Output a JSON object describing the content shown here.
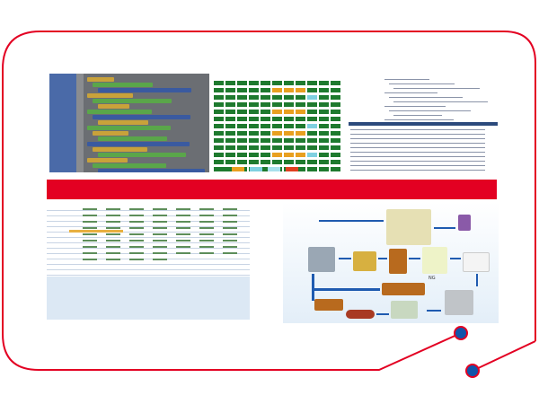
{
  "colors": {
    "frame": "#e30022",
    "dot": "#1155aa",
    "banner": "#e30022",
    "flow_arrow": "#1f5bb0"
  },
  "flow": {
    "ng_label": "NG"
  },
  "icons": [
    "connector-dot",
    "connector-dot"
  ]
}
